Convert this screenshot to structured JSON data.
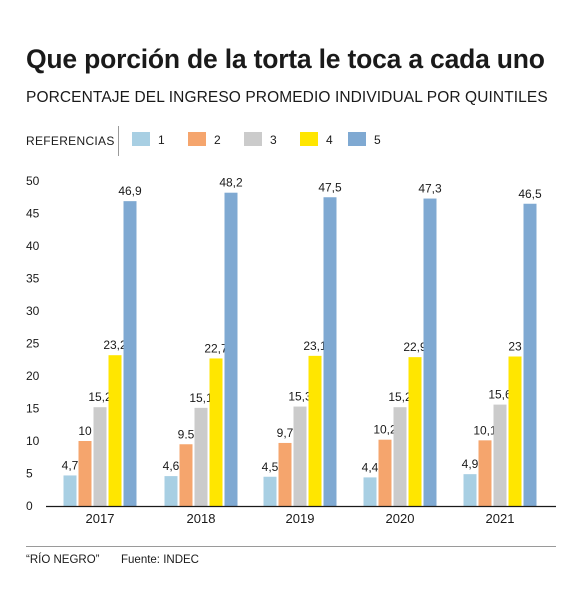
{
  "header": {
    "title": "Que porción de la torta le toca a cada uno",
    "subtitle": "PORCENTAJE DEL INGRESO PROMEDIO INDIVIDUAL POR QUINTILES"
  },
  "legend": {
    "title": "REFERENCIAS",
    "items": [
      {
        "label": "1",
        "color": "#a8cfe3"
      },
      {
        "label": "2",
        "color": "#f5a56d"
      },
      {
        "label": "3",
        "color": "#cbcbcb"
      },
      {
        "label": "4",
        "color": "#ffe600"
      },
      {
        "label": "5",
        "color": "#7fa9d2"
      }
    ]
  },
  "chart_data": {
    "type": "bar",
    "categories": [
      "2017",
      "2018",
      "2019",
      "2020",
      "2021"
    ],
    "ylim": [
      0,
      50
    ],
    "yticks": [
      0,
      5,
      10,
      15,
      20,
      25,
      30,
      35,
      40,
      45,
      50
    ],
    "grid": false,
    "legend_position": "top",
    "series": [
      {
        "name": "1",
        "color": "#a8cfe3",
        "values": [
          4.7,
          4.6,
          4.5,
          4.4,
          4.9
        ],
        "labels": [
          "4,7",
          "4,6",
          "4,5",
          "4,4",
          "4,9"
        ]
      },
      {
        "name": "2",
        "color": "#f5a56d",
        "values": [
          10,
          9.5,
          9.7,
          10.2,
          10.1
        ],
        "labels": [
          "10",
          "9.5",
          "9,7",
          "10,2",
          "10,1"
        ]
      },
      {
        "name": "3",
        "color": "#cbcbcb",
        "values": [
          15.2,
          15.1,
          15.3,
          15.2,
          15.6
        ],
        "labels": [
          "15,2",
          "15,1",
          "15,3",
          "15,2",
          "15,6"
        ]
      },
      {
        "name": "4",
        "color": "#ffe600",
        "values": [
          23.2,
          22.7,
          23.1,
          22.9,
          23
        ],
        "labels": [
          "23,2",
          "22,7",
          "23,1",
          "22,9",
          "23"
        ]
      },
      {
        "name": "5",
        "color": "#7fa9d2",
        "values": [
          46.9,
          48.2,
          47.5,
          47.3,
          46.5
        ],
        "labels": [
          "46,9",
          "48,2",
          "47,5",
          "47,3",
          "46,5"
        ]
      }
    ]
  },
  "footer": {
    "credit": "“RÍO NEGRO”",
    "source": "Fuente: INDEC"
  }
}
